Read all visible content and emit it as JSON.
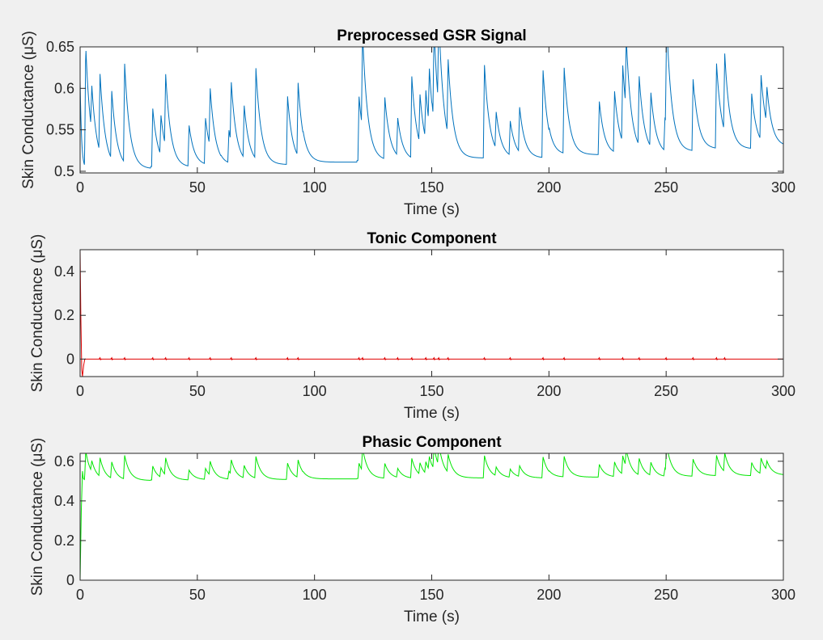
{
  "figure": {
    "background": "#f0f0f0",
    "axes_background": "#ffffff",
    "axis_color": "#262626"
  },
  "chart_data": [
    {
      "type": "line",
      "title": "Preprocessed GSR Signal",
      "xlabel": "Time (s)",
      "ylabel": "Skin Conductance (μS)",
      "xlim": [
        0,
        300
      ],
      "ylim": [
        0.498,
        0.65
      ],
      "xticks": [
        0,
        50,
        100,
        150,
        200,
        250,
        300
      ],
      "yticks": [
        0.5,
        0.55,
        0.6,
        0.65
      ],
      "ytick_labels": [
        "0.5",
        "0.55",
        "0.6",
        "0.65"
      ],
      "grid": false,
      "series": [
        {
          "color": "#0072bd",
          "baseline_segments": [
            {
              "x": [
                0,
                30
              ],
              "y": [
                0.503,
                0.503
              ]
            },
            {
              "x": [
                30,
                46
              ],
              "y": [
                0.505,
                0.505
              ]
            },
            {
              "x": [
                46,
                60
              ],
              "y": [
                0.507,
                0.507
              ]
            },
            {
              "x": [
                60,
                95
              ],
              "y": [
                0.508,
                0.508
              ]
            },
            {
              "x": [
                95,
                118
              ],
              "y": [
                0.511,
                0.511
              ]
            },
            {
              "x": [
                118,
                150
              ],
              "y": [
                0.513,
                0.513
              ]
            },
            {
              "x": [
                150,
                200
              ],
              "y": [
                0.516,
                0.516
              ]
            },
            {
              "x": [
                200,
                250
              ],
              "y": [
                0.52,
                0.52
              ]
            },
            {
              "x": [
                250,
                262
              ],
              "y": [
                0.524,
                0.524
              ]
            },
            {
              "x": [
                262,
                290
              ],
              "y": [
                0.527,
                0.527
              ]
            },
            {
              "x": [
                290,
                300
              ],
              "y": [
                0.53,
                0.53
              ]
            }
          ],
          "onset_x": 0,
          "onset_y": 0.61,
          "peaks": [
            {
              "x": 2.4,
              "y": 0.65
            },
            {
              "x": 5,
              "y": 0.558
            },
            {
              "x": 8.5,
              "y": 0.597
            },
            {
              "x": 13.5,
              "y": 0.585
            },
            {
              "x": 19,
              "y": 0.622
            },
            {
              "x": 31,
              "y": 0.575
            },
            {
              "x": 34.5,
              "y": 0.553
            },
            {
              "x": 36.5,
              "y": 0.592
            },
            {
              "x": 46.5,
              "y": 0.554
            },
            {
              "x": 53.5,
              "y": 0.562
            },
            {
              "x": 55.5,
              "y": 0.577
            },
            {
              "x": 63.5,
              "y": 0.547
            },
            {
              "x": 64.5,
              "y": 0.581
            },
            {
              "x": 70,
              "y": 0.571
            },
            {
              "x": 75,
              "y": 0.617
            },
            {
              "x": 88.5,
              "y": 0.59
            },
            {
              "x": 93,
              "y": 0.596
            },
            {
              "x": 119,
              "y": 0.59
            },
            {
              "x": 120.5,
              "y": 0.628
            },
            {
              "x": 130,
              "y": 0.587
            },
            {
              "x": 135.5,
              "y": 0.558
            },
            {
              "x": 141.5,
              "y": 0.611
            },
            {
              "x": 145,
              "y": 0.572
            },
            {
              "x": 147.5,
              "y": 0.572
            },
            {
              "x": 149,
              "y": 0.581
            },
            {
              "x": 151,
              "y": 0.628
            },
            {
              "x": 153,
              "y": 0.625
            },
            {
              "x": 157,
              "y": 0.607
            },
            {
              "x": 172.5,
              "y": 0.628
            },
            {
              "x": 177.5,
              "y": 0.56
            },
            {
              "x": 183.5,
              "y": 0.557
            },
            {
              "x": 187.5,
              "y": 0.57
            },
            {
              "x": 197.5,
              "y": 0.621
            },
            {
              "x": 206.5,
              "y": 0.623
            },
            {
              "x": 221.5,
              "y": 0.584
            },
            {
              "x": 228,
              "y": 0.593
            },
            {
              "x": 231.5,
              "y": 0.612
            },
            {
              "x": 233,
              "y": 0.606
            },
            {
              "x": 238.5,
              "y": 0.603
            },
            {
              "x": 243.5,
              "y": 0.585
            },
            {
              "x": 249.5,
              "y": 0.56
            },
            {
              "x": 250.2,
              "y": 0.65
            },
            {
              "x": 261.5,
              "y": 0.61
            },
            {
              "x": 271.5,
              "y": 0.629
            },
            {
              "x": 275,
              "y": 0.621
            },
            {
              "x": 286.5,
              "y": 0.593
            },
            {
              "x": 290.5,
              "y": 0.605
            },
            {
              "x": 293,
              "y": 0.574
            }
          ]
        }
      ]
    },
    {
      "type": "line",
      "title": "Tonic Component",
      "xlabel": "Time (s)",
      "ylabel": "Skin Conductance (μS)",
      "xlim": [
        0,
        300
      ],
      "ylim": [
        -0.08,
        0.5
      ],
      "xticks": [
        0,
        50,
        100,
        150,
        200,
        250,
        300
      ],
      "yticks": [
        0,
        0.2,
        0.4
      ],
      "ytick_labels": [
        "0",
        "0.2",
        "0.4"
      ],
      "grid": false,
      "series": [
        {
          "color": "#e00000",
          "onset": [
            {
              "x": 0,
              "y": 0.5
            },
            {
              "x": 0.3,
              "y": 0.2
            },
            {
              "x": 0.7,
              "y": -0.05
            },
            {
              "x": 1.0,
              "y": -0.08
            },
            {
              "x": 1.5,
              "y": -0.03
            },
            {
              "x": 2.0,
              "y": 0.0
            }
          ],
          "level": 0,
          "spike_x": [
            8.5,
            13.5,
            19,
            31,
            36.5,
            46.5,
            55.5,
            64.5,
            75,
            88.5,
            93,
            119,
            120.5,
            130,
            135.5,
            141.5,
            147.5,
            151,
            153,
            157,
            172.5,
            183.5,
            197.5,
            206.5,
            221.5,
            231.5,
            238.5,
            250,
            261.5,
            271.5,
            275
          ],
          "spike_amplitude": 0.006
        }
      ]
    },
    {
      "type": "line",
      "title": "Phasic Component",
      "xlabel": "Time (s)",
      "ylabel": "Skin Conductance (μS)",
      "xlim": [
        0,
        300
      ],
      "ylim": [
        0,
        0.64
      ],
      "xticks": [
        0,
        50,
        100,
        150,
        200,
        250,
        300
      ],
      "yticks": [
        0,
        0.2,
        0.4,
        0.6
      ],
      "ytick_labels": [
        "0",
        "0.2",
        "0.4",
        "0.6"
      ],
      "grid": false,
      "series": [
        {
          "color": "#00e600",
          "derived_from": "preprocessed_signal",
          "onset_y": 0.0
        }
      ]
    }
  ]
}
